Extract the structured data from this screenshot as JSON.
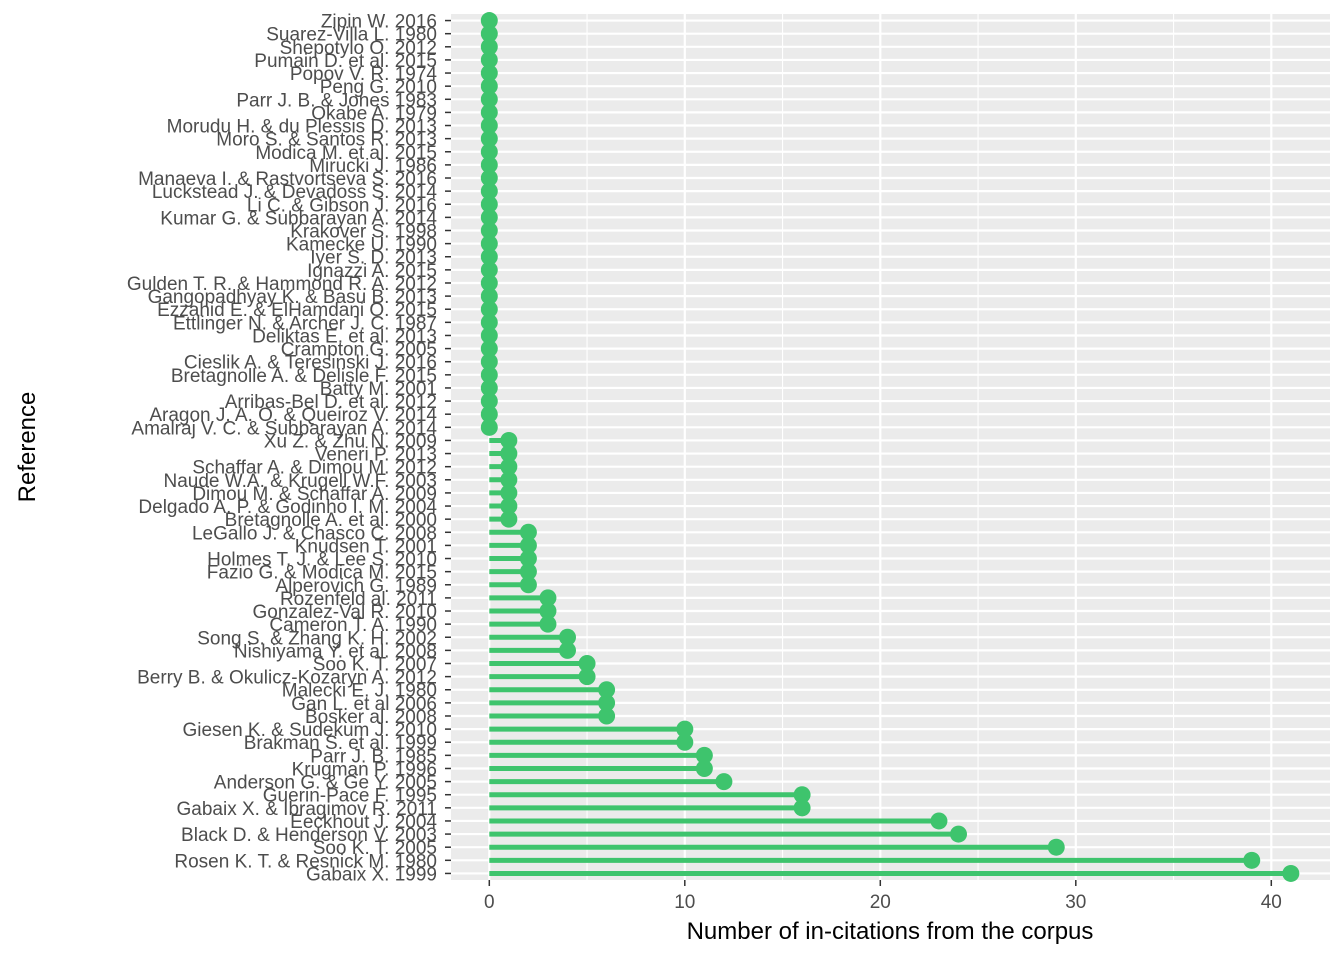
{
  "chart_data": {
    "type": "lollipop",
    "orientation": "horizontal",
    "xlabel": "Number of in-citations from the corpus",
    "ylabel": "Reference",
    "xlim": [
      -2,
      43
    ],
    "x_ticks": [
      0,
      10,
      20,
      30,
      40
    ],
    "grid": true,
    "legend": "none",
    "colors": {
      "mark": "#3ec46d",
      "panel": "#ebebeb",
      "grid": "#ffffff",
      "tick_text": "#4d4d4d",
      "title_text": "#000000"
    },
    "categories": [
      "Gabaix X. 1999",
      "Rosen K. T. & Resnick M. 1980",
      "Soo K. T. 2005",
      "Black D. & Henderson V. 2003",
      "Eeckhout J. 2004",
      "Gabaix X. & Ibragimov R. 2011",
      "Guerin-Pace F. 1995",
      "Anderson G. & Ge Y. 2005",
      "Krugman P. 1996",
      "Parr J. B. 1985",
      "Brakman S. et al. 1999",
      "Giesen K. & Sudekum J. 2010",
      "Bosker al. 2008",
      "Gan L. et al 2006",
      "Malecki E. J. 1980",
      "Berry B. & Okulicz-Kozaryn A. 2012",
      "Soo K. T. 2007",
      "Nishiyama Y. et al. 2008",
      "Song S. & Zhang K. H. 2002",
      "Cameron T. A. 1990",
      "Gonzalez-Val R. 2010",
      "Rozenfeld al. 2011",
      "Alperovich G. 1989",
      "Fazio G. & Modica M. 2015",
      "Holmes T. J. & Lee S. 2010",
      "Knudsen T. 2001",
      "LeGallo J. & Chasco C. 2008",
      "Bretagnolle A. et al. 2000",
      "Delgado A. P. & Godinho I. M. 2004",
      "Dimou M. & Schaffar A. 2009",
      "Naude W.A. & Krugell W.F. 2003",
      "Schaffar A. & Dimou M. 2012",
      "Veneri P. 2013",
      "Xu Z. & Zhu N. 2009",
      "Amalraj V. C. & Subbarayan A. 2014",
      "Aragon J. A. O. & Queiroz V. 2014",
      "Arribas-Bel D. et al. 2012",
      "Batty M. 2001",
      "Bretagnolle A. & Delisle F. 2015",
      "Cieslik A. & Teresinski J. 2016",
      "Crampton G. 2005",
      "Deliktas E. et al. 2013",
      "Ettlinger N. & Archer J. C. 1987",
      "Ezzahid E. & ElHamdani O. 2015",
      "Gangopadhyay K. & Basu B. 2013",
      "Gulden T. R. & Hammond R. A. 2012",
      "Ignazzi A. 2015",
      "Iyer S. D. 2013",
      "Kamecke U. 1990",
      "Krakover S. 1998",
      "Kumar G. & Subbarayan A. 2014",
      "Li C. & Gibson J. 2016",
      "Luckstead J. & Devadoss S. 2014",
      "Manaeva I. & Rastvortseva S. 2016",
      "Mirucki J. 1986",
      "Modica M. et al. 2015",
      "Moro S. & Santos R. 2013",
      "Morudu H. & du Plessis D. 2013",
      "Okabe A. 1979",
      "Parr J. B. & Jones 1983",
      "Peng G. 2010",
      "Popov V. R. 1974",
      "Pumain D. et al. 2015",
      "Shepotylo O. 2012",
      "Suarez-Villa L. 1980",
      "Zipin W. 2016"
    ],
    "values": [
      41,
      39,
      29,
      24,
      23,
      16,
      16,
      12,
      11,
      11,
      10,
      10,
      6,
      6,
      6,
      5,
      5,
      4,
      4,
      3,
      3,
      3,
      2,
      2,
      2,
      2,
      2,
      1,
      1,
      1,
      1,
      1,
      1,
      1,
      0,
      0,
      0,
      0,
      0,
      0,
      0,
      0,
      0,
      0,
      0,
      0,
      0,
      0,
      0,
      0,
      0,
      0,
      0,
      0,
      0,
      0,
      0,
      0,
      0,
      0,
      0,
      0,
      0,
      0,
      0,
      0
    ]
  }
}
